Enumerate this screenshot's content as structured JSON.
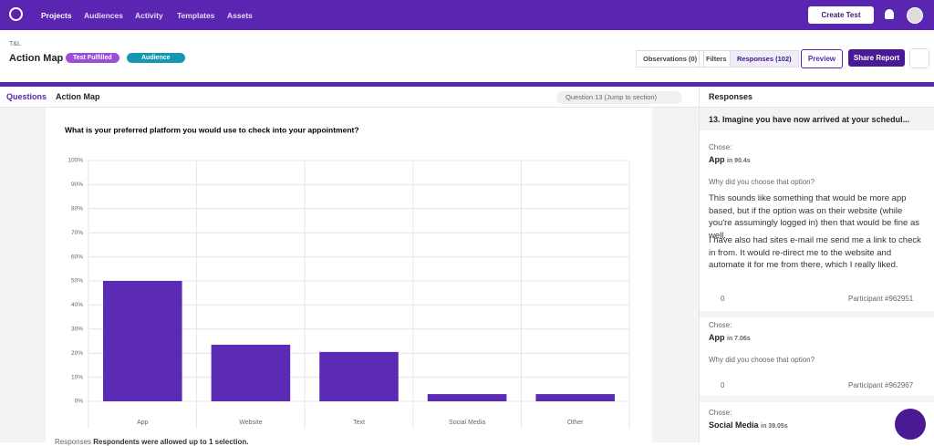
{
  "nav": {
    "items": [
      "Projects",
      "Audiences",
      "Activity",
      "Templates",
      "Assets"
    ],
    "create": "Create Test"
  },
  "header": {
    "breadcrumb": "T&L",
    "title": "Action Map",
    "status": "Test Fulfilled",
    "audience": "Audience",
    "tabs": [
      "Observations (0)",
      "Filters",
      "Responses (102)"
    ],
    "preview": "Preview",
    "share": "Share Report"
  },
  "subheader": {
    "questions": "Questions",
    "page": "Action Map",
    "jump": "Question 13 (Jump to section)"
  },
  "chart_data": {
    "type": "bar",
    "title": "What is your preferred platform you would use to check into your appointment?",
    "categories": [
      "App",
      "Website",
      "Text",
      "Social Media",
      "Other"
    ],
    "values": [
      50,
      23.5,
      20.5,
      3,
      3
    ],
    "color": "#5b2bb5",
    "ylim": [
      0,
      100
    ],
    "yticks": [
      {
        "value": 0,
        "label": "0%"
      },
      {
        "value": 10,
        "label": "10%"
      },
      {
        "value": 20,
        "label": "20%"
      },
      {
        "value": 30,
        "label": "30%"
      },
      {
        "value": 40,
        "label": "40%"
      },
      {
        "value": 50,
        "label": "50%"
      },
      {
        "value": 60,
        "label": "60%"
      },
      {
        "value": 70,
        "label": "70%"
      },
      {
        "value": 80,
        "label": "80%"
      },
      {
        "value": 90,
        "label": "90%"
      },
      {
        "value": 100,
        "label": "100%"
      }
    ],
    "grid": true
  },
  "footer": {
    "label": "Responses",
    "note": "Respondents were allowed up to 1 selection."
  },
  "panel": {
    "title": "Responses",
    "question": "13. Imagine you have now arrived at your schedul...",
    "responses": [
      {
        "chose": "Chose:",
        "answer": "App",
        "time": "in 90.4s",
        "why": "Why did you choose that option?",
        "paragraphs": [
          "This sounds like something that would be more app based, but if the option was on their website (while you're assumingly logged in) then that would be fine as well.",
          "I have also had sites e-mail me send me a link to check in from. It would re-direct me to the website and automate it for me from there, which I really liked."
        ],
        "likes": "0",
        "participant": "Participant #962951"
      },
      {
        "chose": "Chose:",
        "answer": "App",
        "time": "in 7.06s",
        "why": "Why did you choose that option?",
        "likes": "0",
        "participant": "Participant #962967"
      },
      {
        "chose": "Chose:",
        "answer": "Social Media",
        "time": "in 39.05s"
      }
    ]
  }
}
